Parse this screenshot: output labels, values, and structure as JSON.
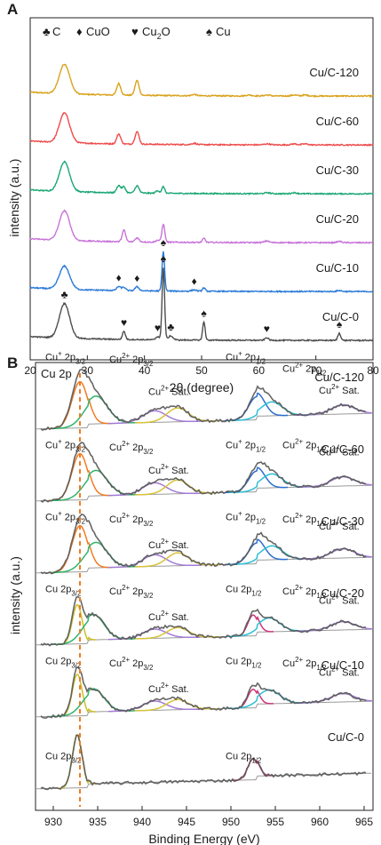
{
  "chart_data": [
    {
      "panel": "A",
      "type": "line",
      "xlabel": "2θ (degree)",
      "ylabel": "intensity (a.u.)",
      "xlim": [
        20,
        80
      ],
      "xticks": [
        20,
        30,
        40,
        50,
        60,
        70,
        80
      ],
      "legend": [
        {
          "symbol": "♣",
          "text": "C"
        },
        {
          "symbol": "♦",
          "text": "CuO"
        },
        {
          "symbol": "♥",
          "text": "Cu2O",
          "base": "Cu",
          "sub": "2",
          "tail": "O"
        },
        {
          "symbol": "♠",
          "text": "Cu"
        }
      ],
      "series": [
        {
          "name": "Cu/C-120",
          "color": "#d9a21b",
          "offset": 5,
          "peaks": [
            [
              26,
              0.9,
              0.9
            ],
            [
              35.5,
              0.35,
              0.35
            ],
            [
              38.7,
              0.45,
              0.35
            ],
            [
              48.7,
              0.04,
              0.4
            ],
            [
              58.3,
              0.03,
              0.5
            ],
            [
              61.5,
              0.03,
              0.5
            ],
            [
              66.2,
              0.03,
              0.5
            ],
            [
              68.1,
              0.03,
              0.5
            ]
          ]
        },
        {
          "name": "Cu/C-60",
          "color": "#ef4b4b",
          "offset": 4,
          "peaks": [
            [
              26,
              0.9,
              0.9
            ],
            [
              35.5,
              0.3,
              0.35
            ],
            [
              38.7,
              0.38,
              0.35
            ],
            [
              48.7,
              0.04,
              0.4
            ],
            [
              61.5,
              0.03,
              0.5
            ],
            [
              66.2,
              0.03,
              0.5
            ],
            [
              68.1,
              0.03,
              0.5
            ]
          ]
        },
        {
          "name": "Cu/C-30",
          "color": "#1aa774",
          "offset": 3,
          "peaks": [
            [
              26,
              0.9,
              0.9
            ],
            [
              35.5,
              0.22,
              0.35
            ],
            [
              36.4,
              0.18,
              0.3
            ],
            [
              38.7,
              0.22,
              0.35
            ],
            [
              42.3,
              0.08,
              0.3
            ],
            [
              43.3,
              0.2,
              0.25
            ],
            [
              61.5,
              0.03,
              0.5
            ],
            [
              66.2,
              0.03,
              0.5
            ]
          ]
        },
        {
          "name": "Cu/C-20",
          "color": "#c773d9",
          "offset": 2,
          "peaks": [
            [
              26,
              0.9,
              0.9
            ],
            [
              36.4,
              0.35,
              0.3
            ],
            [
              38.7,
              0.12,
              0.35
            ],
            [
              42.3,
              0.06,
              0.3
            ],
            [
              43.3,
              0.55,
              0.25
            ],
            [
              50.4,
              0.12,
              0.25
            ],
            [
              61.4,
              0.05,
              0.4
            ],
            [
              74.1,
              0.04,
              0.4
            ]
          ]
        },
        {
          "name": "Cu/C-10",
          "color": "#2a7ad8",
          "offset": 1,
          "peaks": [
            [
              26,
              0.7,
              0.9
            ],
            [
              35.5,
              0.12,
              0.35
            ],
            [
              36.4,
              0.1,
              0.3
            ],
            [
              38.7,
              0.12,
              0.35
            ],
            [
              43.3,
              1.2,
              0.22
            ],
            [
              48.7,
              0.04,
              0.4
            ],
            [
              50.4,
              0.1,
              0.25
            ],
            [
              74.1,
              0.03,
              0.4
            ]
          ]
        },
        {
          "name": "Cu/C-0",
          "color": "#4d4d4d",
          "offset": 0,
          "peaks": [
            [
              26,
              1.05,
              0.9
            ],
            [
              36.4,
              0.25,
              0.25
            ],
            [
              42.3,
              0.1,
              0.3
            ],
            [
              43.3,
              2.2,
              0.22
            ],
            [
              44.6,
              0.12,
              0.4
            ],
            [
              50.4,
              0.55,
              0.22
            ],
            [
              61.4,
              0.08,
              0.3
            ],
            [
              74.1,
              0.22,
              0.25
            ]
          ]
        }
      ],
      "markers": [
        {
          "symbol": "♣",
          "x": 26,
          "series": "Cu/C-0"
        },
        {
          "symbol": "♥",
          "x": 36.4,
          "series": "Cu/C-0"
        },
        {
          "symbol": "♥",
          "x": 42.3,
          "series": "Cu/C-0"
        },
        {
          "symbol": "♠",
          "x": 43.3,
          "series": "Cu/C-0"
        },
        {
          "symbol": "♣",
          "x": 44.6,
          "series": "Cu/C-0"
        },
        {
          "symbol": "♠",
          "x": 50.4,
          "series": "Cu/C-0"
        },
        {
          "symbol": "♥",
          "x": 61.4,
          "series": "Cu/C-0"
        },
        {
          "symbol": "♠",
          "x": 74.1,
          "series": "Cu/C-0"
        },
        {
          "symbol": "♦",
          "x": 35.5,
          "series": "Cu/C-10"
        },
        {
          "symbol": "♦",
          "x": 38.7,
          "series": "Cu/C-10"
        },
        {
          "symbol": "♠",
          "x": 43.3,
          "series": "Cu/C-10"
        },
        {
          "symbol": "♦",
          "x": 48.7,
          "series": "Cu/C-10"
        }
      ]
    },
    {
      "panel": "B",
      "type": "line",
      "xlabel": "Binding Energy (eV)",
      "ylabel": "intensity (a.u.)",
      "xlim": [
        928,
        966
      ],
      "xticks": [
        930,
        935,
        940,
        945,
        950,
        955,
        960,
        965
      ],
      "reference_line_x": 933,
      "corner_label": "Cu 2p",
      "component_colors": {
        "cu_plus": "#f07c22",
        "cu2_main": "#2fb36b",
        "cu2_sat": "#a37bd6",
        "cu2_sat2": "#d9c23a",
        "cu_plus_half": "#2b6fd0",
        "cu2_half": "#2bbfd6",
        "cu0": "#c9c02a",
        "cu0_half": "#cc3377",
        "envelope": "#555555",
        "baseline": "#9a9a9a"
      },
      "series": [
        {
          "name": "Cu/C-120",
          "peaks": [
            {
              "c": 933,
              "h": 1.0,
              "w": 0.9,
              "comp": "cu_plus"
            },
            {
              "c": 934.8,
              "h": 0.6,
              "w": 1.3,
              "comp": "cu2_main"
            },
            {
              "c": 941.4,
              "h": 0.25,
              "w": 1.3,
              "comp": "cu2_sat"
            },
            {
              "c": 944.0,
              "h": 0.3,
              "w": 1.2,
              "comp": "cu2_sat2"
            },
            {
              "c": 952.9,
              "h": 0.5,
              "w": 0.9,
              "comp": "cu_plus_half"
            },
            {
              "c": 954.6,
              "h": 0.3,
              "w": 1.2,
              "comp": "cu2_half"
            },
            {
              "c": 962.6,
              "h": 0.2,
              "w": 1.3,
              "comp": "cu2_sat"
            }
          ],
          "labels": [
            {
              "base": "Cu",
              "sup": "+",
              "mid": " 2p",
              "sub": "3/2",
              "x": 929.1,
              "y": 1.8
            },
            {
              "base": "Cu",
              "sup": "2+",
              "mid": " 2p",
              "sub": "3/2",
              "x": 936.3,
              "y": 1.75
            },
            {
              "base": "Cu",
              "sup": "2+",
              "tail": " Sat.",
              "x": 940.7,
              "y": 1.05
            },
            {
              "base": "Cu",
              "sup": "+",
              "mid": " 2p",
              "sub": "1/2",
              "x": 949.4,
              "y": 1.8
            },
            {
              "base": "Cu",
              "sup": "2+",
              "mid": " 2p",
              "sub": "1/2",
              "x": 955.8,
              "y": 1.55
            },
            {
              "base": "Cu",
              "sup": "2+",
              "tail": " Sat.",
              "x": 959.9,
              "y": 1.08
            }
          ]
        },
        {
          "name": "Cu/C-60",
          "peaks": [
            {
              "c": 933,
              "h": 1.0,
              "w": 0.9,
              "comp": "cu_plus"
            },
            {
              "c": 934.8,
              "h": 0.55,
              "w": 1.3,
              "comp": "cu2_main"
            },
            {
              "c": 941.4,
              "h": 0.25,
              "w": 1.3,
              "comp": "cu2_sat"
            },
            {
              "c": 944.0,
              "h": 0.3,
              "w": 1.2,
              "comp": "cu2_sat2"
            },
            {
              "c": 952.9,
              "h": 0.45,
              "w": 0.9,
              "comp": "cu_plus_half"
            },
            {
              "c": 954.6,
              "h": 0.3,
              "w": 1.2,
              "comp": "cu2_half"
            },
            {
              "c": 962.6,
              "h": 0.2,
              "w": 1.3,
              "comp": "cu2_sat"
            }
          ],
          "labels": [
            {
              "base": "Cu",
              "sup": "+",
              "mid": " 2p",
              "sub": "3/2",
              "x": 929.1,
              "y": 1.45
            },
            {
              "base": "Cu",
              "sup": "2+",
              "mid": " 2p",
              "sub": "3/2",
              "x": 936.3,
              "y": 1.4
            },
            {
              "base": "Cu",
              "sup": "2+",
              "tail": " Sat.",
              "x": 940.7,
              "y": 0.9
            },
            {
              "base": "Cu",
              "sup": "+",
              "mid": " 2p",
              "sub": "1/2",
              "x": 949.4,
              "y": 1.45
            },
            {
              "base": "Cu",
              "sup": "2+",
              "mid": " 2p",
              "sub": "1/2",
              "x": 955.8,
              "y": 1.45
            },
            {
              "base": "Cu",
              "sup": "2+",
              "tail": " Sat.",
              "x": 959.9,
              "y": 1.3
            }
          ]
        },
        {
          "name": "Cu/C-30",
          "peaks": [
            {
              "c": 933,
              "h": 1.0,
              "w": 0.9,
              "comp": "cu_plus"
            },
            {
              "c": 934.8,
              "h": 0.55,
              "w": 1.3,
              "comp": "cu2_main"
            },
            {
              "c": 941.4,
              "h": 0.25,
              "w": 1.3,
              "comp": "cu2_sat"
            },
            {
              "c": 944.0,
              "h": 0.28,
              "w": 1.2,
              "comp": "cu2_sat2"
            },
            {
              "c": 952.9,
              "h": 0.45,
              "w": 0.9,
              "comp": "cu_plus_half"
            },
            {
              "c": 954.6,
              "h": 0.3,
              "w": 1.2,
              "comp": "cu2_half"
            },
            {
              "c": 962.6,
              "h": 0.2,
              "w": 1.3,
              "comp": "cu2_sat"
            }
          ],
          "labels": [
            {
              "base": "Cu",
              "sup": "+",
              "mid": " 2p",
              "sub": "3/2",
              "x": 929.1,
              "y": 1.45
            },
            {
              "base": "Cu",
              "sup": "2+",
              "mid": " 2p",
              "sub": "3/2",
              "x": 936.3,
              "y": 1.4
            },
            {
              "base": "Cu",
              "sup": "2+",
              "tail": " Sat.",
              "x": 940.7,
              "y": 0.85
            },
            {
              "base": "Cu",
              "sup": "+",
              "mid": " 2p",
              "sub": "1/2",
              "x": 949.4,
              "y": 1.45
            },
            {
              "base": "Cu",
              "sup": "2+",
              "mid": " 2p",
              "sub": "1/2",
              "x": 955.8,
              "y": 1.4
            },
            {
              "base": "Cu",
              "sup": "2+",
              "tail": " Sat.",
              "x": 959.9,
              "y": 1.25
            }
          ]
        },
        {
          "name": "Cu/C-20",
          "peaks": [
            {
              "c": 932.7,
              "h": 0.85,
              "w": 0.55,
              "comp": "cu0"
            },
            {
              "c": 934.5,
              "h": 0.55,
              "w": 1.2,
              "comp": "cu2_main"
            },
            {
              "c": 941.4,
              "h": 0.2,
              "w": 1.3,
              "comp": "cu2_sat"
            },
            {
              "c": 944.0,
              "h": 0.22,
              "w": 1.2,
              "comp": "cu2_sat2"
            },
            {
              "c": 952.5,
              "h": 0.45,
              "w": 0.6,
              "comp": "cu0_half"
            },
            {
              "c": 954.3,
              "h": 0.3,
              "w": 1.2,
              "comp": "cu2_half"
            },
            {
              "c": 962.6,
              "h": 0.18,
              "w": 1.3,
              "comp": "cu2_sat"
            }
          ],
          "labels": [
            {
              "base": "Cu",
              "mid": " 2p",
              "sub": "3/2",
              "x": 929.1,
              "y": 1.45
            },
            {
              "base": "Cu",
              "sup": "2+",
              "mid": " 2p",
              "sub": "3/2",
              "x": 936.3,
              "y": 1.4
            },
            {
              "base": "Cu",
              "sup": "2+",
              "tail": " Sat.",
              "x": 940.7,
              "y": 0.85
            },
            {
              "base": "Cu",
              "mid": " 2p",
              "sub": "1/2",
              "x": 949.4,
              "y": 1.45
            },
            {
              "base": "Cu",
              "sup": "2+",
              "mid": " 2p",
              "sub": "1/2",
              "x": 955.8,
              "y": 1.4
            },
            {
              "base": "Cu",
              "sup": "2+",
              "tail": " Sat.",
              "x": 959.9,
              "y": 1.2
            }
          ]
        },
        {
          "name": "Cu/C-10",
          "peaks": [
            {
              "c": 932.7,
              "h": 0.9,
              "w": 0.55,
              "comp": "cu0"
            },
            {
              "c": 934.5,
              "h": 0.5,
              "w": 1.2,
              "comp": "cu2_main"
            },
            {
              "c": 941.4,
              "h": 0.2,
              "w": 1.3,
              "comp": "cu2_sat"
            },
            {
              "c": 944.0,
              "h": 0.22,
              "w": 1.2,
              "comp": "cu2_sat2"
            },
            {
              "c": 952.5,
              "h": 0.4,
              "w": 0.6,
              "comp": "cu0_half"
            },
            {
              "c": 954.3,
              "h": 0.3,
              "w": 1.2,
              "comp": "cu2_half"
            },
            {
              "c": 962.6,
              "h": 0.18,
              "w": 1.3,
              "comp": "cu2_sat"
            }
          ],
          "labels": [
            {
              "base": "Cu",
              "mid": " 2p",
              "sub": "3/2",
              "x": 929.1,
              "y": 1.45
            },
            {
              "base": "Cu",
              "sup": "2+",
              "mid": " 2p",
              "sub": "3/2",
              "x": 936.3,
              "y": 1.4
            },
            {
              "base": "Cu",
              "sup": "2+",
              "tail": " Sat.",
              "x": 940.7,
              "y": 0.85
            },
            {
              "base": "Cu",
              "mid": " 2p",
              "sub": "1/2",
              "x": 949.4,
              "y": 1.45
            },
            {
              "base": "Cu",
              "sup": "2+",
              "mid": " 2p",
              "sub": "1/2",
              "x": 955.8,
              "y": 1.4
            },
            {
              "base": "Cu",
              "sup": "2+",
              "tail": " Sat.",
              "x": 959.9,
              "y": 1.2
            }
          ]
        },
        {
          "name": "Cu/C-0",
          "peaks": [
            {
              "c": 932.7,
              "h": 1.15,
              "w": 0.55,
              "comp": "cu0"
            },
            {
              "c": 952.5,
              "h": 0.45,
              "w": 0.6,
              "comp": "cu0_half"
            }
          ],
          "labels": [
            {
              "base": "Cu",
              "mid": " 2p",
              "sub": "3/2",
              "x": 929.1,
              "y": 0.95
            },
            {
              "base": "Cu",
              "mid": " 2p",
              "sub": "1/2",
              "x": 949.4,
              "y": 0.95
            }
          ]
        }
      ]
    }
  ]
}
